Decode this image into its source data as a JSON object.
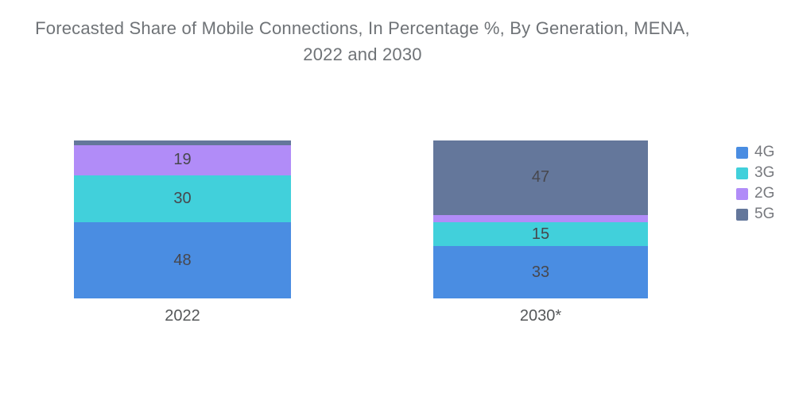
{
  "header": {
    "title_line1": "Forecasted Share of Mobile Connections, In Percentage %, By Generation, MENA,",
    "title_line2": "2022 and 2030"
  },
  "colors": {
    "background": "#FFFFFF",
    "title_text": "#6F7377",
    "value_label_text": "#47474D",
    "category_label_text": "#55585A",
    "legend_text": "#77797E",
    "series_4g": "#4A8DE2",
    "series_3g": "#41D0DB",
    "series_2g": "#B18CF8",
    "series_5g": "#64779B"
  },
  "chart_data": {
    "type": "bar",
    "stacked": true,
    "orientation": "vertical",
    "title": "Forecasted Share of Mobile Connections, In Percentage %, By Generation, MENA, 2022 and 2030",
    "categories": [
      "2022",
      "2030*"
    ],
    "series": [
      {
        "name": "4G",
        "color": "#4A8DE2",
        "values": [
          48,
          33
        ]
      },
      {
        "name": "3G",
        "color": "#41D0DB",
        "values": [
          30,
          15
        ]
      },
      {
        "name": "2G",
        "color": "#B18CF8",
        "values": [
          19,
          5
        ]
      },
      {
        "name": "5G",
        "color": "#64779B",
        "values": [
          3,
          47
        ]
      }
    ],
    "stack_order_bottom_to_top": [
      "4G",
      "3G",
      "2G",
      "5G"
    ],
    "value_label_min": 10,
    "ylim": [
      0,
      100
    ],
    "grid": false,
    "axes_shown": false,
    "legend_position": "right",
    "legend_order": [
      "4G",
      "3G",
      "2G",
      "5G"
    ]
  }
}
